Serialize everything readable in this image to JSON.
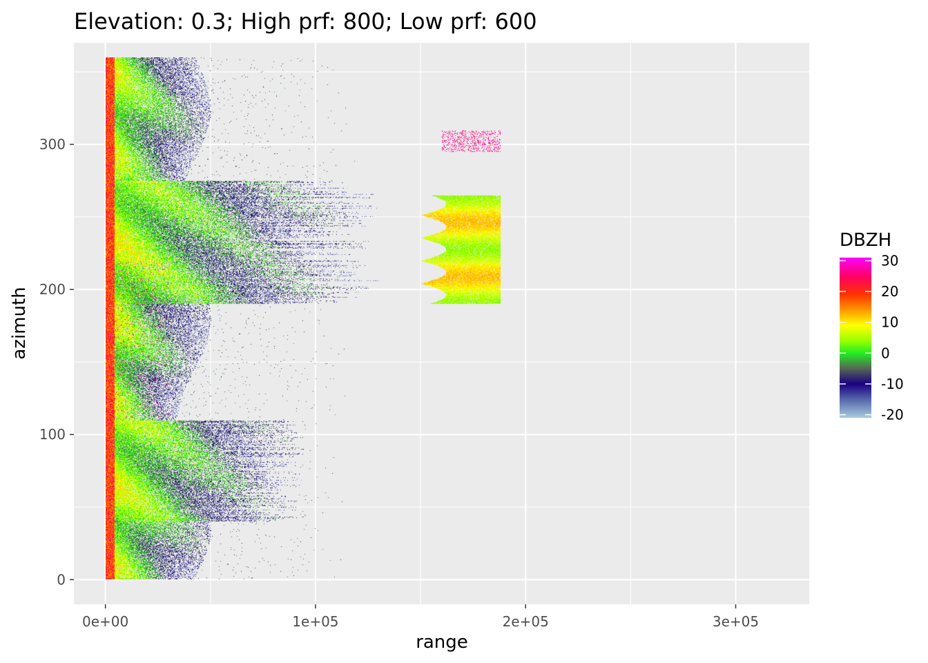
{
  "chart_data": {
    "type": "heatmap",
    "title": "Elevation: 0.3; High prf: 800; Low prf: 600",
    "xlabel": "range",
    "ylabel": "azimuth",
    "xlim": [
      -15000,
      335000
    ],
    "ylim": [
      -17,
      370
    ],
    "x_ticks": [
      0,
      100000,
      200000,
      300000
    ],
    "x_tick_labels": [
      "0e+00",
      "1e+05",
      "2e+05",
      "3e+05"
    ],
    "y_ticks": [
      0,
      100,
      200,
      300
    ],
    "y_tick_labels": [
      "0",
      "100",
      "200",
      "300"
    ],
    "data_extent": {
      "range": [
        0,
        188000
      ],
      "azimuth": [
        0,
        360
      ]
    },
    "background": "#ebebeb",
    "grid": true,
    "legend": {
      "title": "DBZH",
      "position": "right",
      "breaks": [
        30,
        20,
        10,
        0,
        -10,
        -20
      ],
      "labels": [
        "30",
        "20",
        "10",
        "0",
        "-10",
        "-20"
      ],
      "limits": [
        -21,
        31
      ],
      "colors": [
        {
          "value": 31,
          "color": "#ff00ff"
        },
        {
          "value": 25,
          "color": "#ff0066"
        },
        {
          "value": 19,
          "color": "#ff3300"
        },
        {
          "value": 14,
          "color": "#ff9900"
        },
        {
          "value": 9,
          "color": "#ffff00"
        },
        {
          "value": 4,
          "color": "#99ff00"
        },
        {
          "value": 0,
          "color": "#22ee22"
        },
        {
          "value": -5,
          "color": "#556655"
        },
        {
          "value": -10,
          "color": "#1a0080"
        },
        {
          "value": -15,
          "color": "#5566aa"
        },
        {
          "value": -21,
          "color": "#aaccdd"
        }
      ]
    },
    "regions": [
      {
        "name": "near-range clutter",
        "range": [
          0,
          45000
        ],
        "azimuth": [
          0,
          360
        ],
        "dbzh": [
          -10,
          25
        ]
      },
      {
        "name": "mid-range scatter",
        "range": [
          45000,
          120000
        ],
        "azimuth": [
          0,
          360
        ],
        "dbzh": [
          -12,
          5
        ]
      },
      {
        "name": "precipitation cell",
        "range": [
          150000,
          188000
        ],
        "azimuth": [
          190,
          265
        ],
        "dbzh": [
          0,
          18
        ]
      },
      {
        "name": "isolated echoes",
        "range": [
          160000,
          188000
        ],
        "azimuth": [
          295,
          310
        ],
        "dbzh": [
          15,
          30
        ]
      }
    ]
  }
}
